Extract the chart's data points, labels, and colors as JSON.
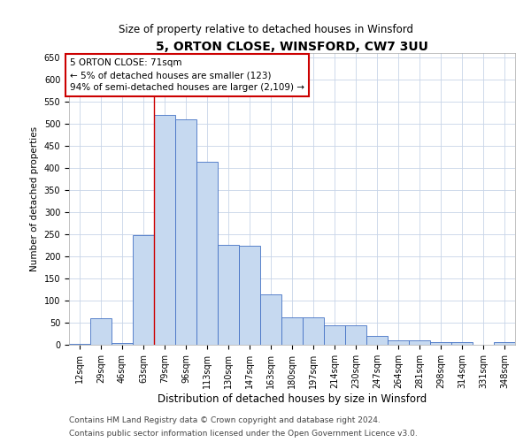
{
  "title_line1": "5, ORTON CLOSE, WINSFORD, CW7 3UU",
  "title_line2": "Size of property relative to detached houses in Winsford",
  "xlabel": "Distribution of detached houses by size in Winsford",
  "ylabel": "Number of detached properties",
  "bin_labels": [
    "12sqm",
    "29sqm",
    "46sqm",
    "63sqm",
    "79sqm",
    "96sqm",
    "113sqm",
    "130sqm",
    "147sqm",
    "163sqm",
    "180sqm",
    "197sqm",
    "214sqm",
    "230sqm",
    "247sqm",
    "264sqm",
    "281sqm",
    "298sqm",
    "314sqm",
    "331sqm",
    "348sqm"
  ],
  "bar_values": [
    3,
    60,
    5,
    248,
    520,
    510,
    415,
    226,
    225,
    115,
    62,
    62,
    45,
    45,
    20,
    11,
    10,
    7,
    6,
    1,
    6
  ],
  "bar_color": "#c6d9f0",
  "bar_edge_color": "#4472c4",
  "grid_color": "#c8d4e8",
  "background_color": "#ffffff",
  "property_line_bin_index": 3.5,
  "annotation_text_line1": "5 ORTON CLOSE: 71sqm",
  "annotation_text_line2": "← 5% of detached houses are smaller (123)",
  "annotation_text_line3": "94% of semi-detached houses are larger (2,109) →",
  "annotation_box_color": "#ffffff",
  "annotation_box_edge": "#cc0000",
  "vline_color": "#cc0000",
  "ylim": [
    0,
    660
  ],
  "yticks": [
    0,
    50,
    100,
    150,
    200,
    250,
    300,
    350,
    400,
    450,
    500,
    550,
    600,
    650
  ],
  "footnote_line1": "Contains HM Land Registry data © Crown copyright and database right 2024.",
  "footnote_line2": "Contains public sector information licensed under the Open Government Licence v3.0.",
  "footnote_color": "#444444",
  "title1_fontsize": 10,
  "title2_fontsize": 8.5,
  "ylabel_fontsize": 7.5,
  "xlabel_fontsize": 8.5,
  "tick_fontsize": 7,
  "annot_fontsize": 7.5,
  "footnote_fontsize": 6.5
}
